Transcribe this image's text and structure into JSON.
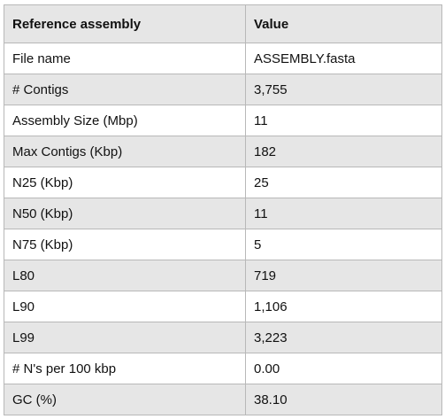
{
  "table": {
    "headers": [
      "Reference assembly",
      "Value"
    ],
    "rows": [
      {
        "label": "File name",
        "value": "ASSEMBLY.fasta"
      },
      {
        "label": "# Contigs",
        "value": "3,755"
      },
      {
        "label": "Assembly Size (Mbp)",
        "value": "11"
      },
      {
        "label": "Max Contigs (Kbp)",
        "value": "182"
      },
      {
        "label": "N25 (Kbp)",
        "value": "25"
      },
      {
        "label": "N50 (Kbp)",
        "value": "11"
      },
      {
        "label": "N75 (Kbp)",
        "value": "5"
      },
      {
        "label": "L80",
        "value": "719"
      },
      {
        "label": "L90",
        "value": "1,106"
      },
      {
        "label": "L99",
        "value": "3,223"
      },
      {
        "label": "# N's per 100 kbp",
        "value": "0.00"
      },
      {
        "label": "GC (%)",
        "value": "38.10"
      }
    ]
  }
}
